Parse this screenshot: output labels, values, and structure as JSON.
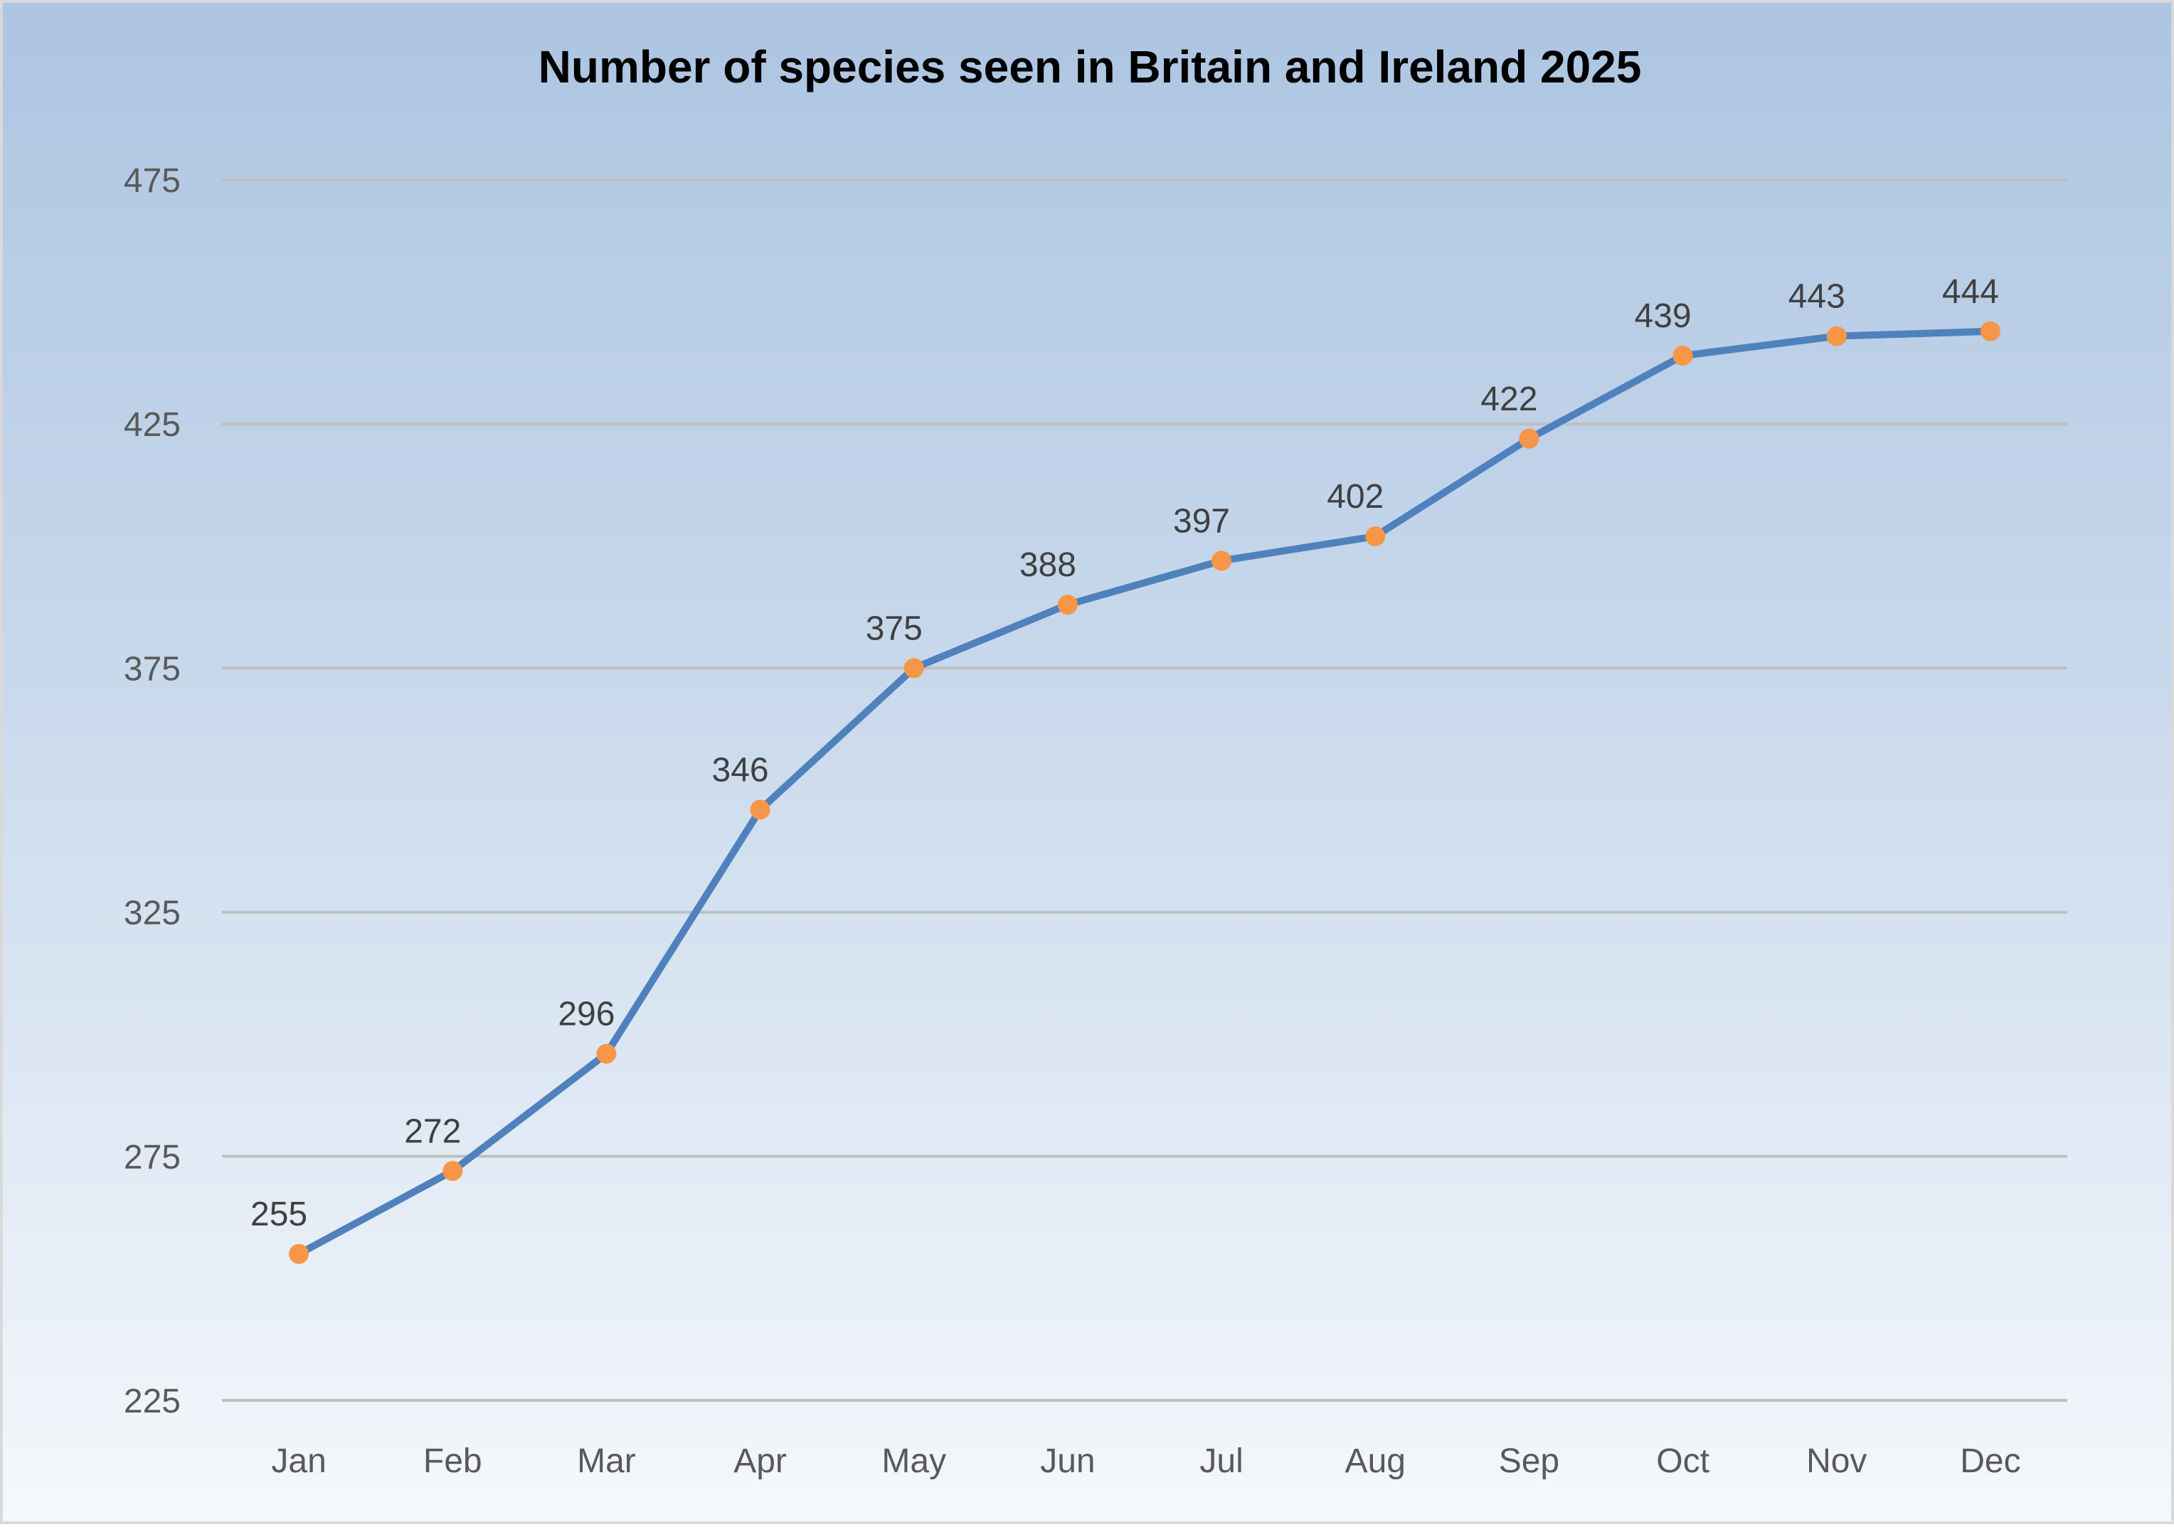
{
  "chart_data": {
    "type": "line",
    "title": "Number of species seen in Britain and Ireland 2025",
    "xlabel": "",
    "ylabel": "",
    "categories": [
      "Jan",
      "Feb",
      "Mar",
      "Apr",
      "May",
      "Jun",
      "Jul",
      "Aug",
      "Sep",
      "Oct",
      "Nov",
      "Dec"
    ],
    "series": [
      {
        "name": "Species",
        "values": [
          255,
          272,
          296,
          346,
          375,
          388,
          397,
          402,
          422,
          439,
          443,
          444
        ],
        "color": "#4f81bd",
        "marker_color": "#f79646"
      }
    ],
    "ylim": [
      225,
      475
    ],
    "yticks": [
      "225",
      "275",
      "325",
      "375",
      "425",
      "475"
    ],
    "grid": true,
    "legend": "none",
    "data_labels": true
  }
}
